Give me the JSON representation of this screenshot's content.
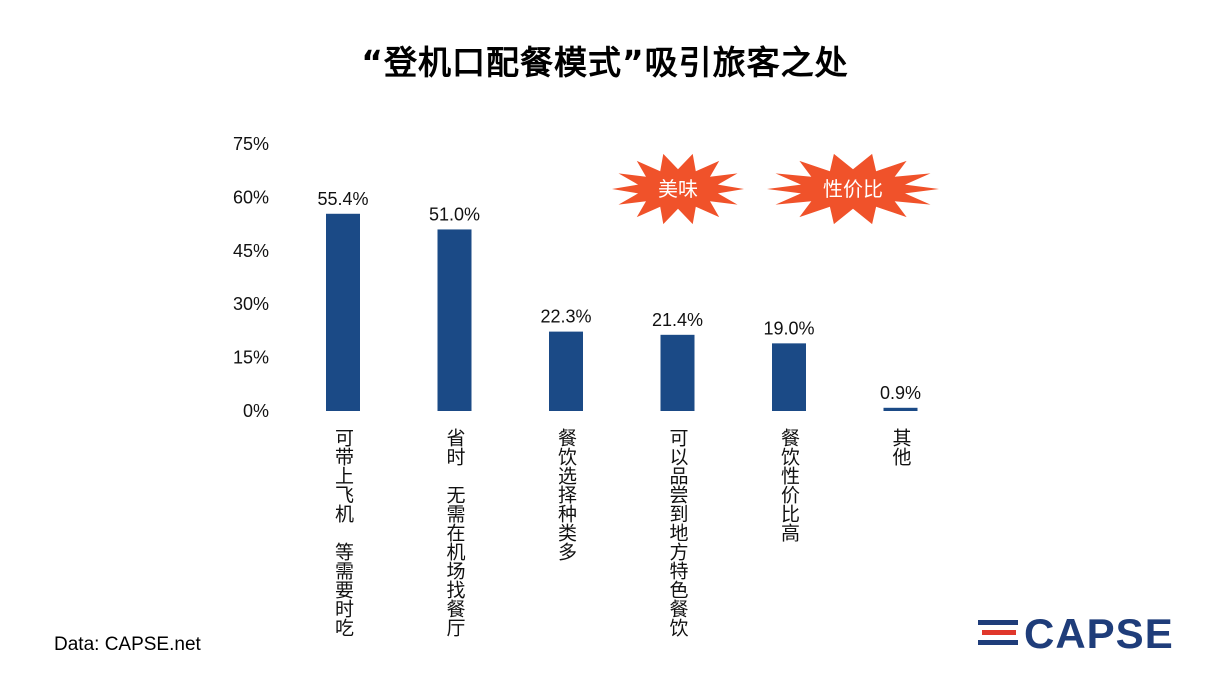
{
  "title": "“登机口配餐模式”吸引旅客之处",
  "source": "Data: CAPSE.net",
  "logo": {
    "text": "CAPSE",
    "primary_color": "#1f3d7a",
    "accent_color": "#e0372b"
  },
  "highlights": [
    {
      "text": "美味",
      "color": "#f0522a"
    },
    {
      "text": "性价比",
      "color": "#f0522a"
    }
  ],
  "chart_data": {
    "type": "bar",
    "title": "“登机口配餐模式”吸引旅客之处",
    "categories": [
      "可带上飞机　等需要时吃",
      "省时　无需在机场找餐厅",
      "餐饮选择种类多",
      "可以品尝到地方特色餐饮",
      "餐饮性价比高",
      "其他"
    ],
    "values": [
      55.4,
      51.0,
      22.3,
      21.4,
      19.0,
      0.9
    ],
    "value_labels": [
      "55.4%",
      "51.0%",
      "22.3%",
      "21.4%",
      "19.0%",
      "0.9%"
    ],
    "ylim": [
      0,
      75
    ],
    "yticks": [
      0,
      15,
      30,
      45,
      60,
      75
    ],
    "ytick_labels": [
      "0%",
      "15%",
      "30%",
      "45%",
      "60%",
      "75%"
    ],
    "bar_color": "#1b4a86",
    "grid": false,
    "legend": "none"
  }
}
